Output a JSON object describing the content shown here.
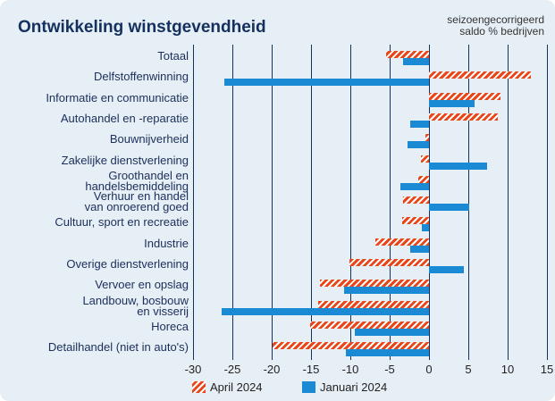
{
  "chart_data": {
    "type": "barh",
    "title": "Ontwikkeling winstgevendheid",
    "subtitle": "seizoengecorrigeerd\nsaldo % bedrijven",
    "categories": [
      "Totaal",
      "Delfstoffenwinning",
      "Informatie en communicatie",
      "Autohandel en -reparatie",
      "Bouwnijverheid",
      "Zakelijke dienstverlening",
      "Groothandel en\nhandelsbemiddeling",
      "Verhuur en handel\nvan onroerend goed",
      "Cultuur, sport en recreatie",
      "Industrie",
      "Overige dienstverlening",
      "Vervoer en opslag",
      "Landbouw, bosbouw\nen visserij",
      "Horeca",
      "Detailhandel (niet in auto's)"
    ],
    "series": [
      {
        "name": "April 2024",
        "color": "#e8461b",
        "pattern": "striped",
        "values": [
          -5.5,
          13,
          9.1,
          8.8,
          -0.5,
          -1,
          -1.4,
          -3.3,
          -3.4,
          -6.8,
          -10.1,
          -13.9,
          -14.1,
          -15.1,
          -19.9
        ]
      },
      {
        "name": "Januari 2024",
        "color": "#1a8ad4",
        "pattern": "solid",
        "values": [
          -3.3,
          -26,
          5.8,
          -2.4,
          -2.7,
          7.4,
          -3.6,
          5.1,
          -0.9,
          -2.4,
          4.4,
          -10.8,
          -26.4,
          -9.4,
          -10.6
        ]
      }
    ],
    "xlim": [
      -30,
      15
    ],
    "xticks": [
      -30,
      -25,
      -20,
      -15,
      -10,
      -5,
      0,
      5,
      10,
      15
    ],
    "grid": true
  }
}
